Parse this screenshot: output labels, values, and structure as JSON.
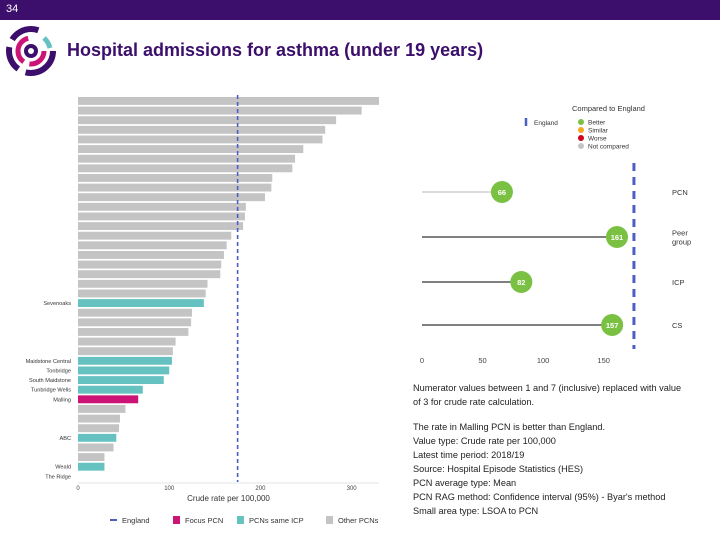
{
  "page": {
    "number": "34",
    "title": "Hospital admissions for asthma (under 19 years)"
  },
  "colors": {
    "header": "#3b0f6b",
    "england": "#4a5fc1",
    "focus": "#cc1477",
    "same_icp": "#66c2c0",
    "other": "#c4c4c4",
    "better": "#7ac143",
    "similar": "#f5a623",
    "worse": "#d0021b",
    "not_compared": "#c4c4c4"
  },
  "chart_data": [
    {
      "type": "bar",
      "orientation": "horizontal",
      "xlabel": "Crude rate per 100,000",
      "xlim": [
        0,
        330
      ],
      "xticks": [
        0,
        100,
        200,
        300
      ],
      "reference": {
        "name": "England",
        "value": 175
      },
      "legend": {
        "position": "bottom",
        "items": [
          "England",
          "Focus PCN",
          "PCNs same ICP",
          "Other PCNs"
        ]
      },
      "bars": [
        {
          "label": "",
          "value": 330,
          "group": "other"
        },
        {
          "label": "",
          "value": 311,
          "group": "other"
        },
        {
          "label": "",
          "value": 283,
          "group": "other"
        },
        {
          "label": "",
          "value": 271,
          "group": "other"
        },
        {
          "label": "",
          "value": 268,
          "group": "other"
        },
        {
          "label": "",
          "value": 247,
          "group": "other"
        },
        {
          "label": "",
          "value": 238,
          "group": "other"
        },
        {
          "label": "",
          "value": 235,
          "group": "other"
        },
        {
          "label": "",
          "value": 213,
          "group": "other"
        },
        {
          "label": "",
          "value": 212,
          "group": "other"
        },
        {
          "label": "",
          "value": 205,
          "group": "other"
        },
        {
          "label": "",
          "value": 184,
          "group": "other"
        },
        {
          "label": "",
          "value": 183,
          "group": "other"
        },
        {
          "label": "",
          "value": 181,
          "group": "other"
        },
        {
          "label": "",
          "value": 168,
          "group": "other"
        },
        {
          "label": "",
          "value": 163,
          "group": "other"
        },
        {
          "label": "",
          "value": 160,
          "group": "other"
        },
        {
          "label": "",
          "value": 157,
          "group": "other"
        },
        {
          "label": "",
          "value": 156,
          "group": "other"
        },
        {
          "label": "",
          "value": 142,
          "group": "other"
        },
        {
          "label": "",
          "value": 140,
          "group": "other"
        },
        {
          "label": "Sevenoaks",
          "value": 138,
          "group": "same_icp"
        },
        {
          "label": "",
          "value": 125,
          "group": "other"
        },
        {
          "label": "",
          "value": 124,
          "group": "other"
        },
        {
          "label": "",
          "value": 121,
          "group": "other"
        },
        {
          "label": "",
          "value": 107,
          "group": "other"
        },
        {
          "label": "",
          "value": 104,
          "group": "other"
        },
        {
          "label": "Maidstone Central",
          "value": 103,
          "group": "same_icp"
        },
        {
          "label": "Tonbridge",
          "value": 100,
          "group": "same_icp"
        },
        {
          "label": "South Maidstone",
          "value": 94,
          "group": "same_icp"
        },
        {
          "label": "Tunbridge Wells",
          "value": 71,
          "group": "same_icp"
        },
        {
          "label": "Malling",
          "value": 66,
          "group": "focus"
        },
        {
          "label": "",
          "value": 52,
          "group": "other"
        },
        {
          "label": "",
          "value": 46,
          "group": "other"
        },
        {
          "label": "",
          "value": 45,
          "group": "other"
        },
        {
          "label": "ABC",
          "value": 42,
          "group": "same_icp"
        },
        {
          "label": "",
          "value": 39,
          "group": "other"
        },
        {
          "label": "",
          "value": 29,
          "group": "other"
        },
        {
          "label": "Weald",
          "value": 29,
          "group": "same_icp"
        },
        {
          "label": "The Ridge",
          "value": 0,
          "group": "same_icp"
        }
      ]
    },
    {
      "type": "lollipop",
      "xlim": [
        0,
        180
      ],
      "xticks": [
        0,
        50,
        100,
        150
      ],
      "reference": {
        "name": "England",
        "value": 175
      },
      "legend": {
        "position": "top-right",
        "title": "Compared to England",
        "england_label": "England",
        "items": [
          "Better",
          "Similar",
          "Worse",
          "Not compared"
        ]
      },
      "points": [
        {
          "label": "PCN",
          "value": 66,
          "display": "66",
          "status": "better",
          "line": "grey"
        },
        {
          "label": "Peer group",
          "value": 161,
          "display": "161",
          "status": "better",
          "line": "black"
        },
        {
          "label": "ICP",
          "value": 82,
          "display": "82",
          "status": "better",
          "line": "black"
        },
        {
          "label": "CS",
          "value": 157,
          "display": "157",
          "status": "better",
          "line": "black"
        }
      ]
    }
  ],
  "notes": {
    "paragraph1": [
      "Numerator values between 1 and 7 (inclusive) replaced with value",
      "of 3 for crude rate calculation."
    ],
    "lines": [
      "The rate in Malling PCN is better than England.",
      "Value type: Crude rate per 100,000",
      "Latest time period: 2018/19",
      "Source: Hospital Episode Statistics (HES)",
      "PCN average type: Mean",
      "PCN RAG method: Confidence interval (95%) - Byar's method",
      "Small area type: LSOA to PCN"
    ]
  }
}
